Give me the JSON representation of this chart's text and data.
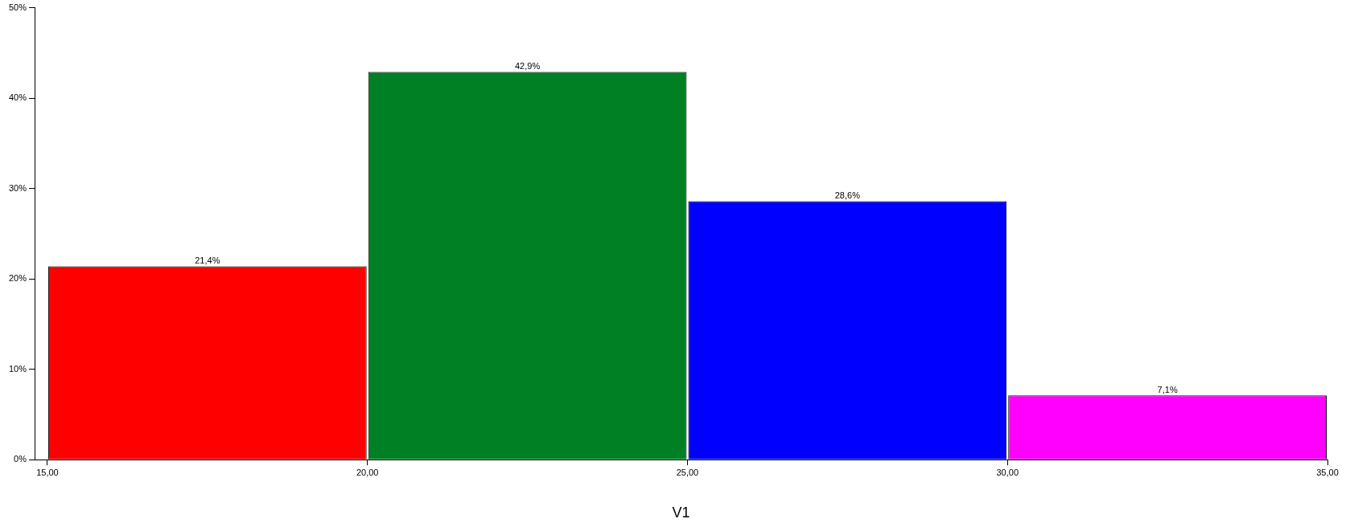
{
  "chart_data": {
    "type": "histogram",
    "xlabel": "V1",
    "bins": [
      15,
      20,
      25,
      30,
      35
    ],
    "values": [
      21.4,
      42.9,
      28.6,
      7.1
    ],
    "colors": [
      "#ff0000",
      "#008024",
      "#0000ff",
      "#ff00ff"
    ],
    "value_labels": [
      "21,4%",
      "42,9%",
      "28,6%",
      "7,1%"
    ],
    "xlim": [
      14.8,
      35
    ],
    "xticks": [
      {
        "value": 15,
        "label": "15,00"
      },
      {
        "value": 20,
        "label": "20,00"
      },
      {
        "value": 25,
        "label": "25,00"
      },
      {
        "value": 30,
        "label": "30,00"
      },
      {
        "value": 35,
        "label": "35,00"
      }
    ],
    "ylim": [
      0,
      50
    ],
    "yticks": [
      {
        "value": 0,
        "label": "0%"
      },
      {
        "value": 10,
        "label": "10%"
      },
      {
        "value": 20,
        "label": "20%"
      },
      {
        "value": 30,
        "label": "30%"
      },
      {
        "value": 40,
        "label": "40%"
      },
      {
        "value": 50,
        "label": "50%"
      }
    ],
    "grid": false,
    "legend": false
  }
}
